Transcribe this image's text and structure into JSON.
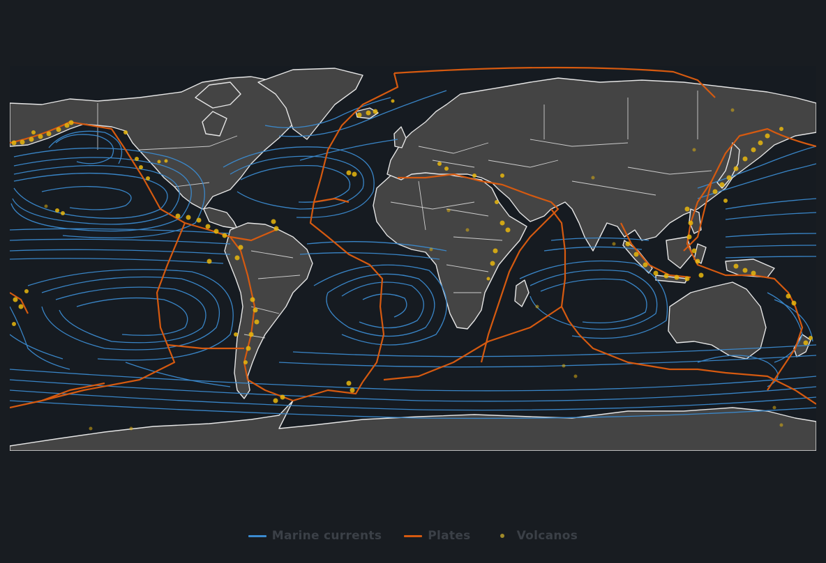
{
  "colors": {
    "background": "#181c21",
    "ocean": "#161b21",
    "land": "#444444",
    "borders": "#e6e6e6",
    "currents": "#3b8bd0",
    "plates": "#d65a10",
    "volcanos": "#e9b80e"
  },
  "legend": [
    {
      "label": "Marine currents",
      "symbol": "line",
      "color": "#3b8bd0"
    },
    {
      "label": "Plates",
      "symbol": "line",
      "color": "#d65a10"
    },
    {
      "label": "Volcanos",
      "symbol": "dot",
      "color": "#a08a2a"
    }
  ]
}
